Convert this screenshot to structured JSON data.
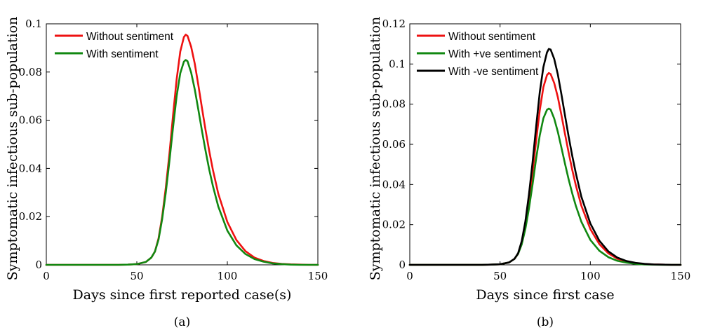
{
  "chart_data": [
    {
      "type": "line",
      "caption": "(a)",
      "xlabel": "Days since first reported case(s)",
      "ylabel": "Symptomatic infectious sub-population",
      "xlim": [
        0,
        150
      ],
      "ylim": [
        0,
        0.1
      ],
      "xticks": [
        0,
        50,
        100,
        150
      ],
      "yticks": [
        0,
        0.02,
        0.04,
        0.06,
        0.08,
        0.1
      ],
      "xtick_labels": [
        "0",
        "50",
        "100",
        "150"
      ],
      "ytick_labels": [
        "0",
        "0.02",
        "0.04",
        "0.06",
        "0.08",
        "0.1"
      ],
      "legend_position": "top-left",
      "grid": false,
      "series": [
        {
          "name": "Without sentiment",
          "color": "#ee1111",
          "x": [
            0,
            40,
            45,
            50,
            55,
            58,
            60,
            62,
            64,
            66,
            68,
            70,
            72,
            74,
            76,
            77,
            78,
            80,
            82,
            84,
            86,
            88,
            90,
            92,
            95,
            100,
            105,
            110,
            115,
            120,
            125,
            130,
            135,
            140,
            145,
            150
          ],
          "y": [
            0,
            0,
            0.0001,
            0.0003,
            0.0012,
            0.003,
            0.0055,
            0.011,
            0.02,
            0.032,
            0.046,
            0.062,
            0.077,
            0.0885,
            0.0945,
            0.0955,
            0.095,
            0.0905,
            0.0835,
            0.0745,
            0.065,
            0.0558,
            0.0472,
            0.0395,
            0.0295,
            0.0178,
            0.0103,
            0.0057,
            0.003,
            0.0016,
            0.0008,
            0.0004,
            0.0002,
            0.0001,
            0,
            0
          ]
        },
        {
          "name": "With sentiment",
          "color": "#118811",
          "x": [
            0,
            40,
            45,
            50,
            55,
            58,
            60,
            62,
            64,
            66,
            68,
            70,
            72,
            74,
            76,
            77,
            78,
            80,
            82,
            84,
            86,
            88,
            90,
            92,
            95,
            100,
            105,
            110,
            115,
            120,
            125,
            130,
            135,
            140,
            145,
            150
          ],
          "y": [
            0,
            0,
            0.0001,
            0.0003,
            0.0012,
            0.003,
            0.0055,
            0.0105,
            0.019,
            0.03,
            0.043,
            0.057,
            0.07,
            0.0795,
            0.0843,
            0.085,
            0.0845,
            0.0798,
            0.0728,
            0.0643,
            0.0555,
            0.0472,
            0.0395,
            0.0328,
            0.0242,
            0.0142,
            0.0081,
            0.0045,
            0.0024,
            0.0013,
            0.0006,
            0.0003,
            0.0001,
            0,
            0,
            0
          ]
        }
      ]
    },
    {
      "type": "line",
      "caption": "(b)",
      "xlabel": "Days since first case",
      "ylabel": "Symptomatic infectious sub-population",
      "xlim": [
        0,
        150
      ],
      "ylim": [
        0,
        0.12
      ],
      "xticks": [
        0,
        50,
        100,
        150
      ],
      "yticks": [
        0,
        0.02,
        0.04,
        0.06,
        0.08,
        0.1,
        0.12
      ],
      "xtick_labels": [
        "0",
        "50",
        "100",
        "150"
      ],
      "ytick_labels": [
        "0",
        "0.02",
        "0.04",
        "0.06",
        "0.08",
        "0.1",
        "0.12"
      ],
      "legend_position": "top-left",
      "grid": false,
      "series": [
        {
          "name": "Without sentiment",
          "color": "#ee1111",
          "x": [
            0,
            40,
            45,
            50,
            55,
            58,
            60,
            62,
            64,
            66,
            68,
            70,
            72,
            74,
            76,
            77,
            78,
            80,
            82,
            84,
            86,
            88,
            90,
            92,
            95,
            100,
            105,
            110,
            115,
            120,
            125,
            130,
            135,
            140,
            145,
            150
          ],
          "y": [
            0,
            0,
            0.0001,
            0.0003,
            0.0012,
            0.003,
            0.0055,
            0.011,
            0.02,
            0.032,
            0.046,
            0.062,
            0.077,
            0.0885,
            0.0945,
            0.0955,
            0.095,
            0.0905,
            0.0835,
            0.0745,
            0.065,
            0.0558,
            0.0472,
            0.0395,
            0.0295,
            0.0178,
            0.0103,
            0.0057,
            0.003,
            0.0016,
            0.0008,
            0.0004,
            0.0002,
            0.0001,
            0,
            0
          ]
        },
        {
          "name": "With +ve sentiment",
          "color": "#118811",
          "x": [
            0,
            40,
            45,
            50,
            55,
            58,
            60,
            62,
            64,
            66,
            68,
            70,
            72,
            74,
            76,
            77,
            78,
            80,
            82,
            84,
            86,
            88,
            90,
            92,
            95,
            100,
            105,
            110,
            115,
            120,
            125,
            130,
            135,
            140,
            145,
            150
          ],
          "y": [
            0,
            0,
            0.0001,
            0.0003,
            0.0012,
            0.003,
            0.0055,
            0.0102,
            0.0178,
            0.028,
            0.04,
            0.053,
            0.0645,
            0.073,
            0.0772,
            0.0778,
            0.0773,
            0.0728,
            0.0662,
            0.0583,
            0.0502,
            0.0425,
            0.0355,
            0.0293,
            0.0215,
            0.0124,
            0.007,
            0.0038,
            0.002,
            0.0011,
            0.0005,
            0.0002,
            0.0001,
            0,
            0,
            0
          ]
        },
        {
          "name": "With -ve sentiment",
          "color": "#000000",
          "x": [
            0,
            40,
            45,
            50,
            55,
            58,
            60,
            62,
            64,
            66,
            68,
            70,
            72,
            74,
            76,
            77,
            78,
            80,
            82,
            84,
            86,
            88,
            90,
            92,
            95,
            100,
            105,
            110,
            115,
            120,
            125,
            130,
            135,
            140,
            145,
            150
          ],
          "y": [
            0,
            0,
            0.0001,
            0.0003,
            0.0012,
            0.003,
            0.0058,
            0.0118,
            0.0215,
            0.035,
            0.051,
            0.069,
            0.086,
            0.0985,
            0.1058,
            0.1075,
            0.1072,
            0.1025,
            0.0948,
            0.0848,
            0.0742,
            0.0638,
            0.0542,
            0.0455,
            0.034,
            0.0206,
            0.012,
            0.0067,
            0.0036,
            0.0019,
            0.001,
            0.0005,
            0.0002,
            0.0001,
            0,
            0
          ]
        }
      ]
    }
  ]
}
